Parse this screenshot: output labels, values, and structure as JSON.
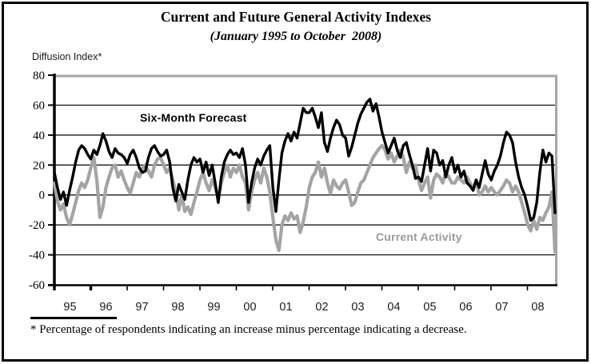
{
  "header": {
    "title": "Current and Future General Activity Indexes",
    "subtitle": "(January 1995 to October  2008)"
  },
  "axis_note": "Diffusion Index*",
  "footnote": "* Percentage of respondents indicating an increase minus percentage indicating a decrease.",
  "series_labels": {
    "forecast": "Six-Month Forecast",
    "current": "Current Activity"
  },
  "colors": {
    "forecast_line": "#000000",
    "current_line": "#a4a4a4",
    "current_label": "#9a9a9a",
    "plot_border_gray": "#a6a6a6",
    "grid": "#000000"
  },
  "chart_data": {
    "type": "line",
    "title": "Current and Future General Activity Indexes",
    "subtitle": "(January 1995 to October  2008)",
    "ylabel": "Diffusion Index*",
    "xlabel": "",
    "x_unit": "month",
    "x_start": "1995-01",
    "x_end": "2008-10",
    "x_tick_labels": [
      "95",
      "96",
      "97",
      "98",
      "99",
      "00",
      "01",
      "02",
      "03",
      "04",
      "05",
      "06",
      "07",
      "08"
    ],
    "y_ticks": [
      80,
      60,
      40,
      20,
      0,
      -20,
      -40,
      -60
    ],
    "ylim": [
      -60,
      80
    ],
    "grid": true,
    "legend_position": "inline-annotations",
    "series": [
      {
        "name": "Six-Month Forecast",
        "color": "#000000",
        "values": [
          15,
          5,
          -3,
          2,
          -7,
          3,
          12,
          22,
          30,
          33,
          31,
          27,
          24,
          30,
          27,
          33,
          41,
          36,
          29,
          25,
          31,
          28,
          27,
          25,
          21,
          27,
          30,
          25,
          18,
          15,
          16,
          25,
          31,
          33,
          29,
          26,
          27,
          30,
          22,
          5,
          -4,
          7,
          2,
          -3,
          10,
          20,
          25,
          22,
          24,
          15,
          22,
          13,
          20,
          8,
          -5,
          12,
          22,
          27,
          30,
          27,
          28,
          25,
          31,
          20,
          -5,
          8,
          18,
          24,
          20,
          26,
          30,
          33,
          5,
          -11,
          10,
          28,
          36,
          41,
          36,
          42,
          38,
          48,
          58,
          55,
          55,
          58,
          52,
          45,
          55,
          35,
          29,
          38,
          45,
          50,
          47,
          40,
          38,
          26,
          32,
          40,
          48,
          54,
          58,
          62,
          64,
          56,
          61,
          52,
          42,
          35,
          28,
          33,
          38,
          30,
          25,
          33,
          35,
          27,
          20,
          11,
          12,
          9,
          20,
          31,
          16,
          30,
          28,
          20,
          23,
          12,
          20,
          25,
          15,
          20,
          12,
          16,
          8,
          6,
          3,
          10,
          5,
          14,
          23,
          14,
          10,
          16,
          20,
          26,
          35,
          42,
          40,
          35,
          22,
          12,
          5,
          0,
          -8,
          -17,
          -15,
          -5,
          15,
          30,
          22,
          28,
          26,
          -12
        ]
      },
      {
        "name": "Current Activity",
        "color": "#a4a4a4",
        "values": [
          8,
          -4,
          -10,
          -6,
          -15,
          -20,
          -13,
          -5,
          3,
          8,
          5,
          10,
          18,
          25,
          10,
          -15,
          -8,
          5,
          12,
          18,
          20,
          12,
          16,
          10,
          5,
          1,
          8,
          15,
          12,
          18,
          20,
          16,
          12,
          20,
          24,
          25,
          20,
          15,
          18,
          10,
          2,
          -10,
          0,
          -11,
          -8,
          -13,
          -5,
          2,
          10,
          15,
          8,
          3,
          10,
          5,
          -3,
          8,
          15,
          20,
          12,
          18,
          15,
          20,
          12,
          8,
          -10,
          2,
          10,
          15,
          8,
          18,
          12,
          2,
          -15,
          -30,
          -37,
          -20,
          -14,
          -17,
          -12,
          -16,
          -14,
          -25,
          -18,
          -8,
          5,
          12,
          15,
          22,
          12,
          18,
          8,
          1,
          10,
          6,
          4,
          8,
          10,
          2,
          -7,
          -5,
          2,
          8,
          10,
          15,
          20,
          25,
          28,
          31,
          33,
          30,
          24,
          28,
          22,
          26,
          30,
          25,
          15,
          22,
          18,
          20,
          10,
          3,
          8,
          12,
          -2,
          10,
          14,
          12,
          8,
          15,
          12,
          8,
          8,
          12,
          10,
          8,
          12,
          8,
          4,
          10,
          0,
          2,
          6,
          2,
          5,
          2,
          0,
          3,
          6,
          10,
          8,
          2,
          6,
          2,
          -5,
          -12,
          -20,
          -24,
          -17,
          -23,
          -15,
          -17,
          -12,
          -8,
          2,
          -38
        ]
      }
    ]
  }
}
